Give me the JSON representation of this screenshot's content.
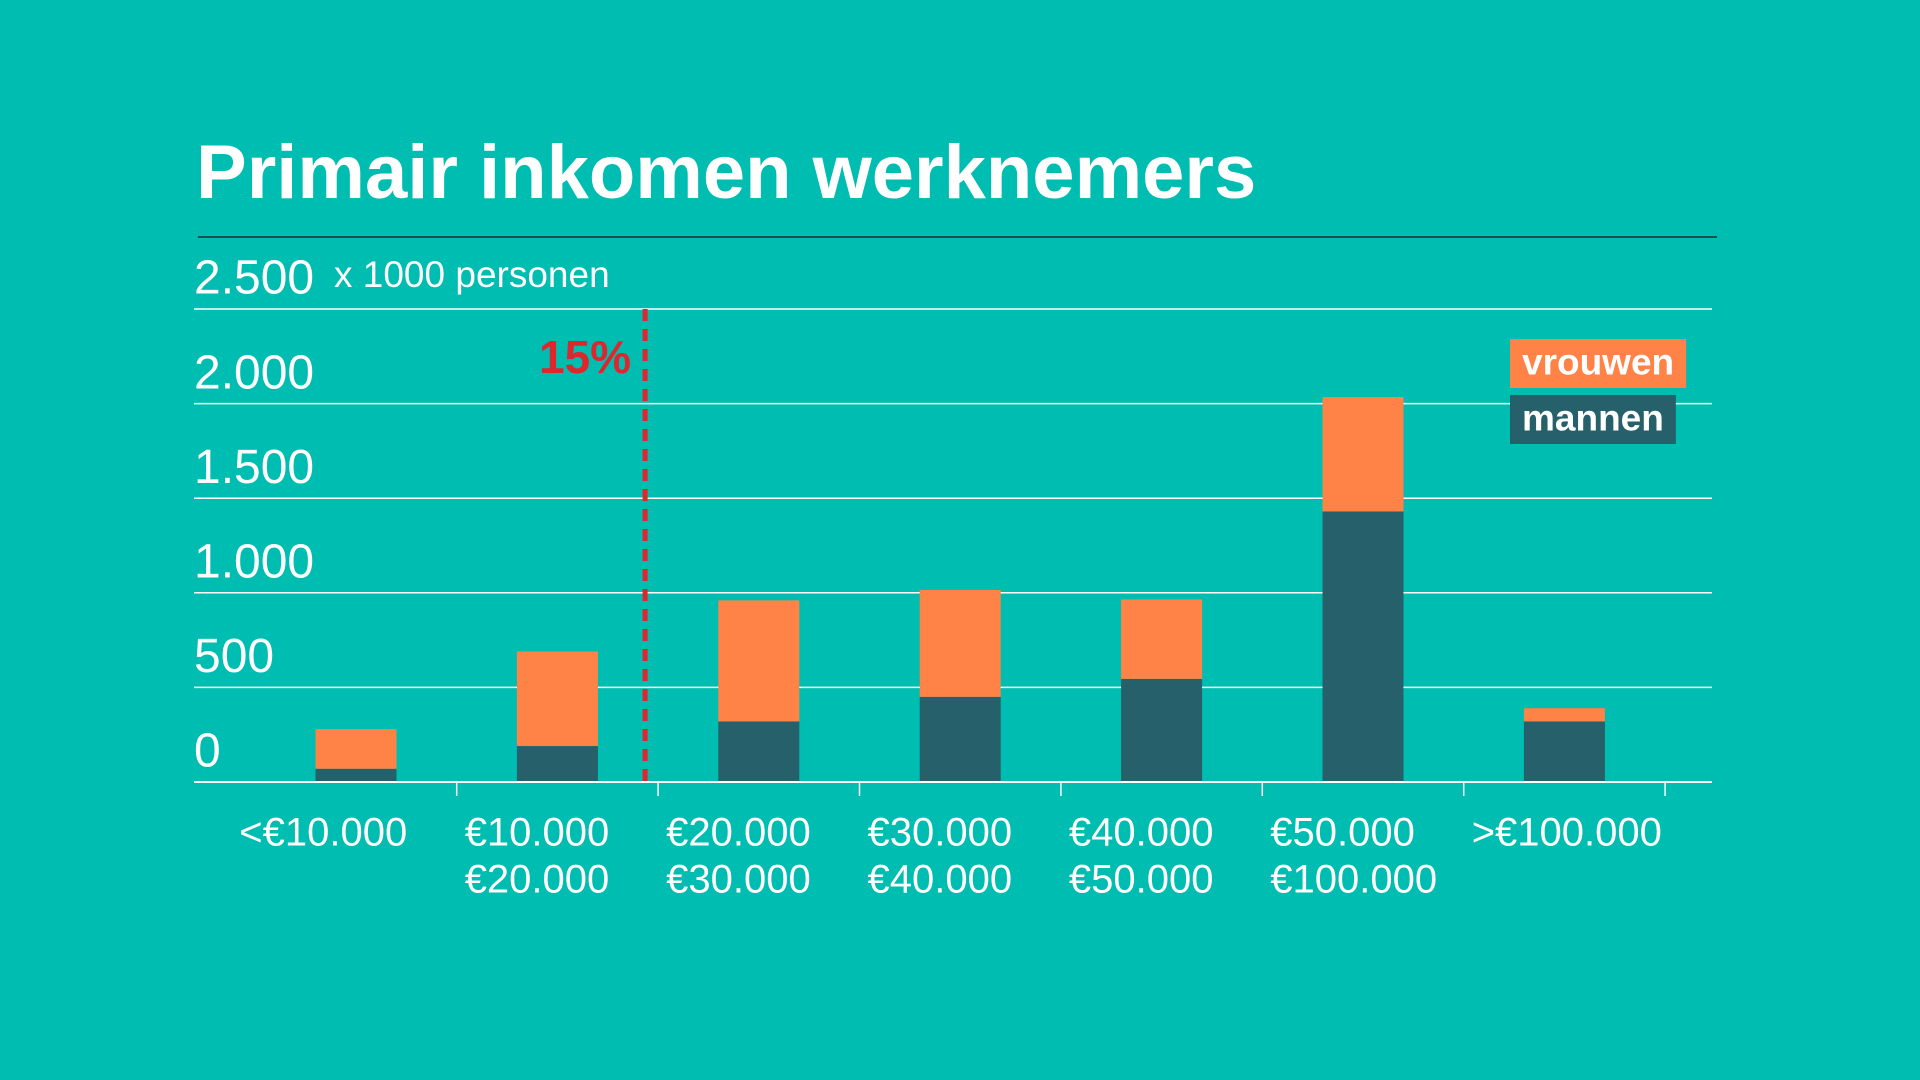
{
  "chart_data": {
    "type": "stacked_bar",
    "title": "Primair inkomen werknemers",
    "y_axis_label": "x 1000 personen",
    "categories": [
      [
        "<€10.000"
      ],
      [
        "€10.000",
        "€20.000"
      ],
      [
        "€20.000",
        "€30.000"
      ],
      [
        "€30.000",
        "€40.000"
      ],
      [
        "€40.000",
        "€50.000"
      ],
      [
        "€50.000",
        "€100.000"
      ],
      [
        ">€100.000"
      ]
    ],
    "series": [
      {
        "name": "mannen",
        "color": "#25606b",
        "values": [
          70,
          190,
          320,
          450,
          545,
          1430,
          320
        ]
      },
      {
        "name": "vrouwen",
        "color": "#ff8246",
        "values": [
          210,
          500,
          640,
          565,
          420,
          605,
          70
        ]
      }
    ],
    "ylim": [
      0,
      2500
    ],
    "yticks": [
      0,
      500,
      {
        "value": 1000,
        "label": "1.000"
      },
      {
        "value": 1500,
        "label": "1.500"
      },
      {
        "value": 2000,
        "label": "2.000"
      },
      {
        "value": 2500,
        "label": "2.500"
      }
    ],
    "grid": true,
    "legend": "upper right",
    "annotation": {
      "text": "15%",
      "color": "#e0262d"
    }
  }
}
